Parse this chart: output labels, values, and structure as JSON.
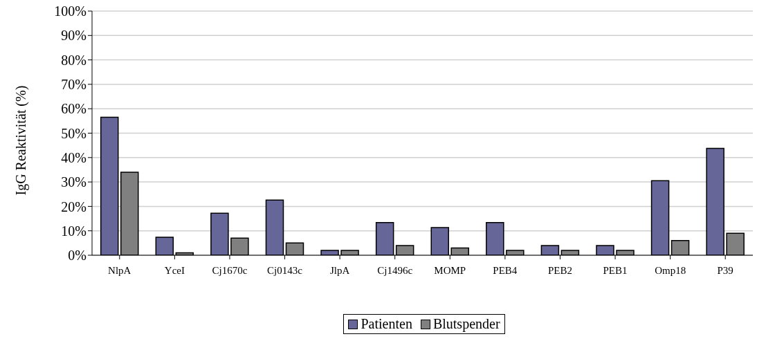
{
  "chart_data": {
    "type": "bar",
    "ylabel": "IgG Reaktivität (%)",
    "categories": [
      "NlpA",
      "YceI",
      "Cj1670c",
      "Cj0143c",
      "JlpA",
      "Cj1496c",
      "MOMP",
      "PEB4",
      "PEB2",
      "PEB1",
      "Omp18",
      "P39"
    ],
    "series": [
      {
        "name": "Patienten",
        "color": "#666699",
        "values": [
          56.5,
          7.4,
          17.2,
          22.6,
          2,
          13.4,
          11.3,
          13.4,
          4,
          4,
          30.5,
          43.8
        ]
      },
      {
        "name": "Blutspender",
        "color": "#808080",
        "values": [
          34,
          1,
          7,
          5,
          2,
          4,
          3,
          2,
          2,
          2,
          6,
          9
        ]
      }
    ],
    "ylim": [
      0,
      100
    ],
    "yticks": [
      {
        "value": 0,
        "label": "0%"
      },
      {
        "value": 10,
        "label": "10%"
      },
      {
        "value": 20,
        "label": "20%"
      },
      {
        "value": 30,
        "label": "30%"
      },
      {
        "value": 40,
        "label": "40%"
      },
      {
        "value": 50,
        "label": "50%"
      },
      {
        "value": 60,
        "label": "60%"
      },
      {
        "value": 70,
        "label": "70%"
      },
      {
        "value": 80,
        "label": "80%"
      },
      {
        "value": 90,
        "label": "90%"
      },
      {
        "value": 100,
        "label": "100%"
      }
    ],
    "grid": "y",
    "legend": "bottom"
  }
}
